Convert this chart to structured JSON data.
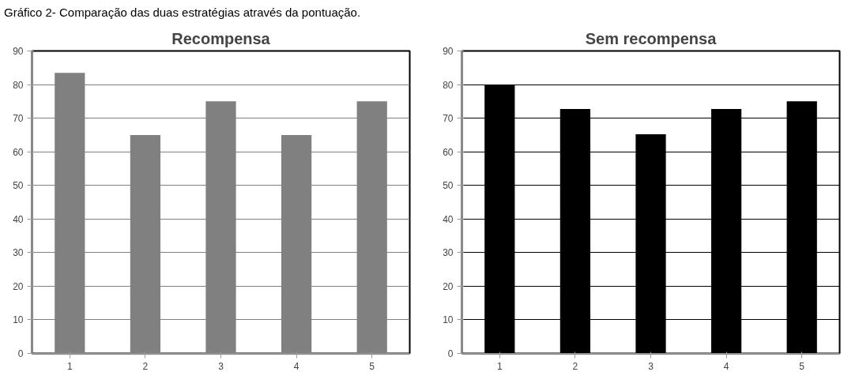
{
  "chart_data": [
    {
      "type": "bar",
      "title": "Recompensa",
      "annotations": [
        "Gráfico 2- Comparação das duas estratégias através da pontuação."
      ],
      "categories": [
        "1",
        "2",
        "3",
        "4",
        "5"
      ],
      "values": [
        83.5,
        65,
        75,
        65,
        75
      ],
      "color": "#808080",
      "ylim": [
        0,
        90
      ],
      "yticks": [
        0,
        10,
        20,
        30,
        40,
        50,
        60,
        70,
        80,
        90
      ],
      "grid": "y"
    },
    {
      "type": "bar",
      "title": "Sem recompensa",
      "categories": [
        "1",
        "2",
        "3",
        "4",
        "5"
      ],
      "values": [
        80,
        72.7,
        65.2,
        72.7,
        75
      ],
      "color": "#000000",
      "ylim": [
        0,
        90
      ],
      "yticks": [
        0,
        10,
        20,
        30,
        40,
        50,
        60,
        70,
        80,
        90
      ],
      "grid": "y"
    }
  ]
}
